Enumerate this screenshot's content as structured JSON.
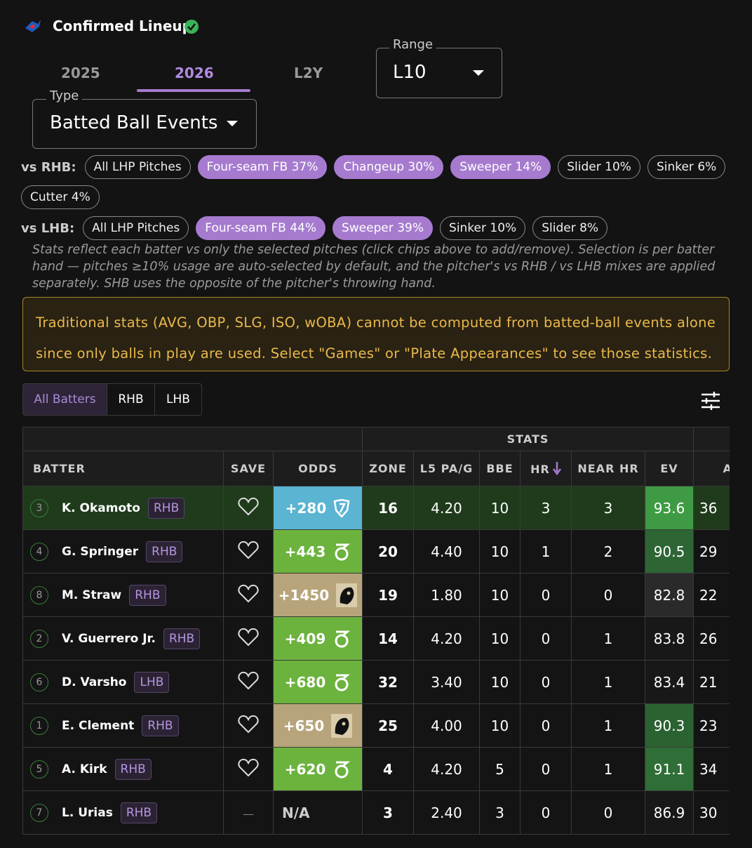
{
  "header": {
    "title": "Confirmed Lineup"
  },
  "tabs": [
    "2025",
    "2026",
    "L2Y"
  ],
  "range": {
    "label": "Range",
    "value": "L10"
  },
  "type": {
    "label": "Type",
    "value": "Batted Ball Events"
  },
  "vs_rhb": {
    "label": "vs RHB:",
    "chips": [
      {
        "text": "All LHP Pitches",
        "selected": false
      },
      {
        "text": "Four-seam FB 37%",
        "selected": true
      },
      {
        "text": "Changeup 30%",
        "selected": true
      },
      {
        "text": "Sweeper 14%",
        "selected": true
      },
      {
        "text": "Slider 10%",
        "selected": false
      },
      {
        "text": "Sinker 6%",
        "selected": false
      },
      {
        "text": "Cutter 4%",
        "selected": false
      }
    ]
  },
  "vs_lhb": {
    "label": "vs LHB:",
    "chips": [
      {
        "text": "All LHP Pitches",
        "selected": false
      },
      {
        "text": "Four-seam FB 44%",
        "selected": true
      },
      {
        "text": "Sweeper 39%",
        "selected": true
      },
      {
        "text": "Sinker 10%",
        "selected": false
      },
      {
        "text": "Slider 8%",
        "selected": false
      }
    ]
  },
  "note": "Stats reflect each batter vs only the selected pitches (click chips above to add/remove). Selection is per batter hand — pitches ≥10% usage are auto-selected by default, and the pitcher's vs RHB / vs LHB mixes are applied separately. SHB uses the opposite of the pitcher's throwing hand.",
  "warning": "Traditional stats (AVG, OBP, SLG, ISO, wOBA) cannot be computed from batted-ball events alone since only balls in play are used. Select \"Games\" or \"Plate Appearances\" to see those statistics.",
  "filters": [
    "All Batters",
    "RHB",
    "LHB"
  ],
  "table": {
    "group_header": "STATS",
    "columns": [
      "BATTER",
      "SAVE",
      "ODDS",
      "ZONE",
      "L5 PA/G",
      "BBE",
      "HR",
      "NEAR HR",
      "EV",
      "AVG"
    ],
    "rows": [
      {
        "order": "3",
        "name": "K. Okamoto",
        "hand": "RHB",
        "odds": "+280",
        "odds_color": "#5ab4d2",
        "book": "fd",
        "zone": "16",
        "l5": "4.20",
        "bbe": "10",
        "hr": "3",
        "near_hr": "3",
        "ev": "93.6",
        "ev_color": "#3e9b43",
        "avg": "36",
        "row_color": "#1f3b1b"
      },
      {
        "order": "4",
        "name": "G. Springer",
        "hand": "RHB",
        "odds": "+443",
        "odds_color": "#6cb33e",
        "book": "dk",
        "zone": "20",
        "l5": "4.40",
        "bbe": "10",
        "hr": "1",
        "near_hr": "2",
        "ev": "90.5",
        "ev_color": "#2d6534",
        "avg": "29",
        "row_color": "#141414"
      },
      {
        "order": "8",
        "name": "M. Straw",
        "hand": "RHB",
        "odds": "+1450",
        "odds_color": "#b7a47a",
        "book": "ot",
        "zone": "19",
        "l5": "1.80",
        "bbe": "10",
        "hr": "0",
        "near_hr": "0",
        "ev": "82.8",
        "ev_color": "#2a2a2a",
        "avg": "22",
        "row_color": "#141414"
      },
      {
        "order": "2",
        "name": "V. Guerrero Jr.",
        "hand": "RHB",
        "odds": "+409",
        "odds_color": "#6cb33e",
        "book": "dk",
        "zone": "14",
        "l5": "4.20",
        "bbe": "10",
        "hr": "0",
        "near_hr": "1",
        "ev": "83.8",
        "ev_color": "#181818",
        "avg": "26",
        "row_color": "#141414"
      },
      {
        "order": "6",
        "name": "D. Varsho",
        "hand": "LHB",
        "odds": "+680",
        "odds_color": "#6cb33e",
        "book": "dk",
        "zone": "32",
        "l5": "3.40",
        "bbe": "10",
        "hr": "0",
        "near_hr": "1",
        "ev": "83.4",
        "ev_color": "#181818",
        "avg": "21",
        "row_color": "#141414"
      },
      {
        "order": "1",
        "name": "E. Clement",
        "hand": "RHB",
        "odds": "+650",
        "odds_color": "#b7a47a",
        "book": "ot",
        "zone": "25",
        "l5": "4.00",
        "bbe": "10",
        "hr": "0",
        "near_hr": "1",
        "ev": "90.3",
        "ev_color": "#2b6232",
        "avg": "23",
        "row_color": "#141414"
      },
      {
        "order": "5",
        "name": "A. Kirk",
        "hand": "RHB",
        "odds": "+620",
        "odds_color": "#6cb33e",
        "book": "dk",
        "zone": "4",
        "l5": "4.20",
        "bbe": "5",
        "hr": "0",
        "near_hr": "1",
        "ev": "91.1",
        "ev_color": "#2f6e36",
        "avg": "34",
        "row_color": "#141414"
      },
      {
        "order": "7",
        "name": "L. Urias",
        "hand": "RHB",
        "save": "—",
        "odds": "N/A",
        "zone": "3",
        "l5": "2.40",
        "bbe": "3",
        "hr": "0",
        "near_hr": "0",
        "ev": "86.9",
        "ev_color": "#181818",
        "avg": "30",
        "row_color": "#141414"
      }
    ]
  }
}
